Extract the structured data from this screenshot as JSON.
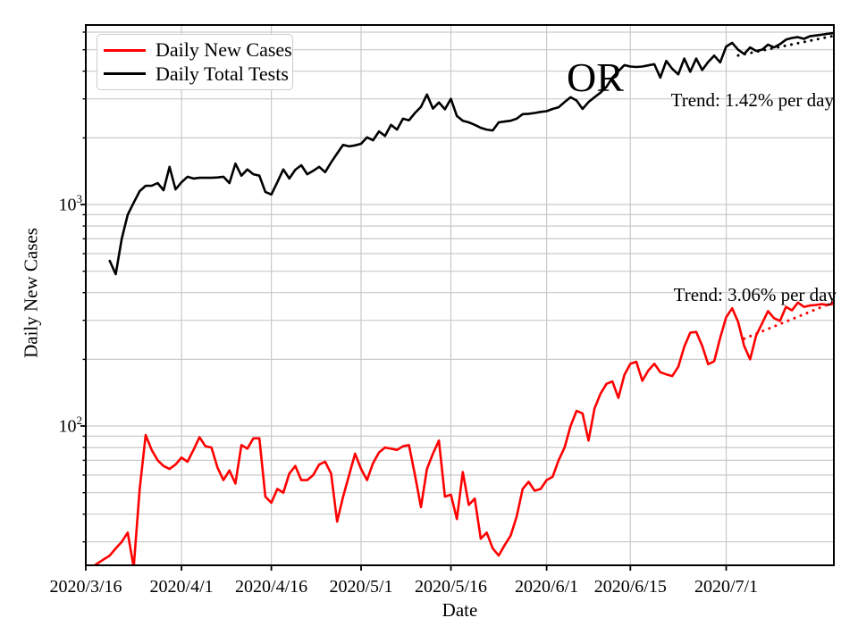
{
  "chart_data": {
    "type": "line",
    "title": "",
    "xlabel": "Date",
    "ylabel": "Daily New Cases",
    "yscale": "log",
    "ylim": [
      23.5,
      6465
    ],
    "x_domain": [
      "2020-03-16",
      "2020-07-19"
    ],
    "grid": {
      "which": "both",
      "color": "#c9c9c9"
    },
    "x_ticks": [
      {
        "date": "2020-03-16",
        "label": "2020/3/16"
      },
      {
        "date": "2020-04-01",
        "label": "2020/4/1"
      },
      {
        "date": "2020-04-16",
        "label": "2020/4/16"
      },
      {
        "date": "2020-05-01",
        "label": "2020/5/1"
      },
      {
        "date": "2020-05-16",
        "label": "2020/5/16"
      },
      {
        "date": "2020-06-01",
        "label": "2020/6/1"
      },
      {
        "date": "2020-06-15",
        "label": "2020/6/15"
      },
      {
        "date": "2020-07-01",
        "label": "2020/7/1"
      }
    ],
    "y_major_ticks": [
      {
        "value": 1000,
        "base": "10",
        "exp": "3"
      },
      {
        "value": 100,
        "base": "10",
        "exp": "2"
      }
    ],
    "series": [
      {
        "name": "Daily New Cases",
        "color": "#ff0000",
        "start_date": "2020-03-17",
        "values": [
          23,
          24,
          25,
          26,
          28,
          30,
          33,
          23,
          52,
          91,
          78,
          70,
          66,
          64,
          67,
          72,
          69,
          78,
          89,
          81,
          80,
          65,
          57,
          63,
          55,
          82,
          79,
          88,
          88,
          48,
          45,
          52,
          50,
          61,
          66,
          57,
          57,
          60,
          67,
          69,
          61,
          37,
          48,
          60,
          75,
          64,
          57,
          68,
          76,
          80,
          79,
          78,
          81,
          82,
          60,
          43,
          64,
          75,
          86,
          48,
          49,
          38,
          62,
          44,
          47,
          31,
          33,
          28,
          26,
          29,
          32,
          39,
          52,
          56,
          51,
          52,
          57,
          59,
          70,
          80,
          100,
          117,
          114,
          86,
          120,
          140,
          155,
          159,
          134,
          170,
          191,
          195,
          160,
          178,
          191,
          175,
          171,
          168,
          185,
          228,
          264,
          266,
          230,
          190,
          196,
          250,
          310,
          340,
          295,
          230,
          200,
          256,
          290,
          330,
          307,
          298,
          345,
          333,
          361,
          345,
          350,
          352,
          355,
          352,
          357
        ]
      },
      {
        "name": "Daily Total Tests",
        "color": "#000000",
        "start_date": "2020-03-20",
        "values": [
          557,
          485,
          700,
          900,
          1020,
          1150,
          1215,
          1215,
          1250,
          1160,
          1480,
          1170,
          1260,
          1335,
          1310,
          1320,
          1320,
          1320,
          1325,
          1335,
          1250,
          1530,
          1350,
          1440,
          1370,
          1350,
          1140,
          1110,
          1260,
          1440,
          1310,
          1435,
          1505,
          1370,
          1420,
          1480,
          1400,
          1550,
          1700,
          1860,
          1830,
          1850,
          1880,
          2010,
          1950,
          2140,
          2040,
          2290,
          2180,
          2440,
          2400,
          2590,
          2760,
          3140,
          2710,
          2890,
          2690,
          3000,
          2510,
          2390,
          2350,
          2290,
          2220,
          2180,
          2160,
          2350,
          2370,
          2390,
          2440,
          2560,
          2570,
          2590,
          2620,
          2640,
          2700,
          2750,
          2900,
          3050,
          2950,
          2700,
          2900,
          3050,
          3200,
          3400,
          3740,
          4000,
          4260,
          4200,
          4180,
          4200,
          4250,
          4300,
          3740,
          4450,
          4100,
          3870,
          4560,
          3980,
          4560,
          4050,
          4400,
          4700,
          4380,
          5170,
          5370,
          5000,
          4780,
          5120,
          4940,
          5000,
          5270,
          5120,
          5300,
          5550,
          5650,
          5700,
          5600,
          5750,
          5800,
          5850,
          5900,
          5950
        ]
      }
    ],
    "trend_lines": [
      {
        "series": "Daily Total Tests",
        "color": "#000000",
        "style": "dotted",
        "start_date": "2020-07-03",
        "start_value": 4710,
        "end_date": "2020-07-19",
        "end_value": 5780,
        "label": "Trend: 1.42% per day"
      },
      {
        "series": "Daily New Cases",
        "color": "#ff0000",
        "style": "dotted",
        "start_date": "2020-07-04",
        "start_value": 248,
        "end_date": "2020-07-19",
        "end_value": 363,
        "label": "Trend: 3.06% per day"
      }
    ],
    "annotations": [
      {
        "text": "OR"
      }
    ],
    "legend": {
      "position": "upper left",
      "items": [
        "Daily New Cases",
        "Daily Total Tests"
      ]
    }
  }
}
